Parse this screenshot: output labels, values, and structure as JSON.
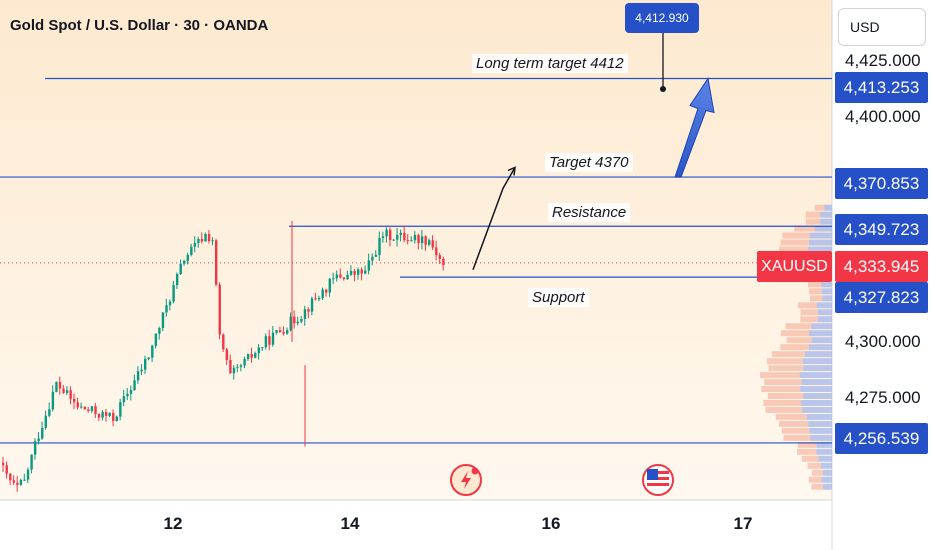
{
  "header": {
    "title": "Gold Spot / U.S. Dollar · 30 · OANDA",
    "currency": "USD"
  },
  "annotations": {
    "long_term_target": "Long term target 4412",
    "target": "Target  4370",
    "resistance": "Resistance",
    "support": "Support",
    "target_bubble": "4,412.930"
  },
  "price_scale": {
    "ticks": [
      "4,425.000",
      "4,400.000",
      "4,300.000",
      "4,275.000"
    ],
    "tags": {
      "long_target": "4,413.253",
      "target": "4,370.853",
      "resistance": "4,349.723",
      "current": "4,333.945",
      "support": "4,327.823",
      "low": "4,256.539"
    },
    "symbol": "XAUUSD"
  },
  "time_axis": {
    "ticks": [
      "12",
      "14",
      "16",
      "17"
    ]
  },
  "colors": {
    "up": "#089981",
    "down": "#f23645",
    "line": "#2650c7",
    "bg_top": "#fde9cf",
    "bg_bottom": "#fff8ef"
  },
  "icons": {
    "event_1": "lightning-event-icon",
    "event_2": "us-flag-icon"
  },
  "chart_data": {
    "type": "candlestick",
    "symbol": "XAUUSD",
    "timeframe": "30",
    "current_price": 4333.945,
    "levels": [
      {
        "name": "Long term target",
        "value": 4413.253
      },
      {
        "name": "Target",
        "value": 4370.853
      },
      {
        "name": "Resistance",
        "value": 4349.723
      },
      {
        "name": "Support",
        "value": 4327.823
      },
      {
        "value": 4256.539
      }
    ],
    "ylim": [
      4232,
      4447
    ],
    "x_ticks": [
      "12",
      "14",
      "16",
      "17"
    ],
    "segments": [
      {
        "n": 2,
        "from": 4248,
        "to": 4242
      },
      {
        "n": 2,
        "from": 4242,
        "to": 4238
      },
      {
        "n": 3,
        "from": 4236,
        "to": 4240
      },
      {
        "n": 3,
        "from": 4240,
        "to": 4256
      },
      {
        "n": 6,
        "from": 4256,
        "to": 4282
      },
      {
        "n": 6,
        "from": 4282,
        "to": 4272
      },
      {
        "n": 10,
        "from": 4272,
        "to": 4267
      },
      {
        "n": 10,
        "from": 4267,
        "to": 4294
      },
      {
        "n": 10,
        "from": 4294,
        "to": 4336
      },
      {
        "n": 6,
        "from": 4336,
        "to": 4346
      },
      {
        "n": 2,
        "from": 4346,
        "to": 4344
      },
      {
        "n": 2,
        "from": 4344,
        "to": 4302
      },
      {
        "n": 3,
        "from": 4302,
        "to": 4285
      },
      {
        "n": 10,
        "from": 4285,
        "to": 4300
      },
      {
        "n": 10,
        "from": 4300,
        "to": 4312
      },
      {
        "n": 10,
        "from": 4312,
        "to": 4328
      },
      {
        "n": 8,
        "from": 4328,
        "to": 4330
      },
      {
        "n": 5,
        "from": 4330,
        "to": 4346
      },
      {
        "n": 13,
        "from": 4346,
        "to": 4344
      },
      {
        "n": 4,
        "from": 4344,
        "to": 4333
      }
    ],
    "projection": [
      {
        "price": 4331,
        "step": 0
      },
      {
        "price": 4366,
        "step": 1
      },
      {
        "price": 4375,
        "step": 2
      }
    ],
    "long_term_arrow": {
      "from": 4370.853,
      "to": 4413.253
    }
  }
}
